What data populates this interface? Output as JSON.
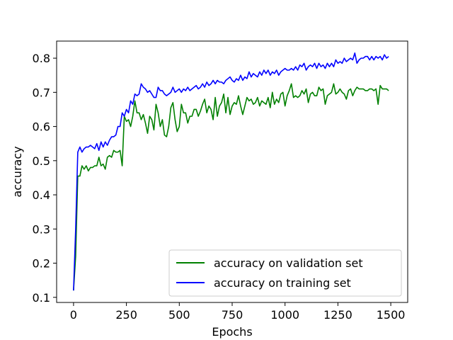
{
  "chart_data": {
    "type": "line",
    "xlabel": "Epochs",
    "ylabel": "accuracy",
    "xlim": [
      -80,
      1580
    ],
    "ylim": [
      0.085,
      0.85
    ],
    "x_ticks": [
      0,
      250,
      500,
      750,
      1000,
      1250,
      1500
    ],
    "y_ticks": [
      0.1,
      0.2,
      0.3,
      0.4,
      0.5,
      0.6,
      0.7,
      0.8
    ],
    "grid": false,
    "legend_position": "bottom-right",
    "series": [
      {
        "name": "accuracy on validation set",
        "color": "#008000",
        "points": [
          [
            0,
            0.12
          ],
          [
            10,
            0.22
          ],
          [
            20,
            0.455
          ],
          [
            30,
            0.455
          ],
          [
            40,
            0.485
          ],
          [
            50,
            0.475
          ],
          [
            60,
            0.485
          ],
          [
            70,
            0.47
          ],
          [
            80,
            0.48
          ],
          [
            90,
            0.48
          ],
          [
            100,
            0.485
          ],
          [
            110,
            0.485
          ],
          [
            120,
            0.51
          ],
          [
            130,
            0.485
          ],
          [
            140,
            0.49
          ],
          [
            150,
            0.475
          ],
          [
            160,
            0.51
          ],
          [
            170,
            0.515
          ],
          [
            180,
            0.51
          ],
          [
            190,
            0.53
          ],
          [
            200,
            0.525
          ],
          [
            210,
            0.525
          ],
          [
            220,
            0.53
          ],
          [
            230,
            0.485
          ],
          [
            240,
            0.63
          ],
          [
            250,
            0.615
          ],
          [
            260,
            0.62
          ],
          [
            270,
            0.6
          ],
          [
            280,
            0.63
          ],
          [
            290,
            0.675
          ],
          [
            300,
            0.64
          ],
          [
            310,
            0.64
          ],
          [
            320,
            0.62
          ],
          [
            330,
            0.635
          ],
          [
            340,
            0.61
          ],
          [
            350,
            0.58
          ],
          [
            360,
            0.63
          ],
          [
            370,
            0.62
          ],
          [
            380,
            0.59
          ],
          [
            390,
            0.665
          ],
          [
            400,
            0.64
          ],
          [
            410,
            0.6
          ],
          [
            420,
            0.62
          ],
          [
            430,
            0.575
          ],
          [
            440,
            0.57
          ],
          [
            450,
            0.6
          ],
          [
            460,
            0.655
          ],
          [
            470,
            0.67
          ],
          [
            480,
            0.62
          ],
          [
            490,
            0.585
          ],
          [
            500,
            0.6
          ],
          [
            510,
            0.665
          ],
          [
            520,
            0.64
          ],
          [
            530,
            0.64
          ],
          [
            540,
            0.61
          ],
          [
            550,
            0.63
          ],
          [
            560,
            0.63
          ],
          [
            570,
            0.65
          ],
          [
            580,
            0.65
          ],
          [
            590,
            0.63
          ],
          [
            600,
            0.645
          ],
          [
            610,
            0.665
          ],
          [
            620,
            0.68
          ],
          [
            630,
            0.64
          ],
          [
            640,
            0.66
          ],
          [
            650,
            0.65
          ],
          [
            660,
            0.62
          ],
          [
            670,
            0.685
          ],
          [
            680,
            0.63
          ],
          [
            690,
            0.66
          ],
          [
            700,
            0.67
          ],
          [
            710,
            0.695
          ],
          [
            720,
            0.64
          ],
          [
            730,
            0.685
          ],
          [
            740,
            0.635
          ],
          [
            750,
            0.66
          ],
          [
            760,
            0.67
          ],
          [
            770,
            0.665
          ],
          [
            780,
            0.69
          ],
          [
            790,
            0.66
          ],
          [
            800,
            0.635
          ],
          [
            810,
            0.66
          ],
          [
            820,
            0.685
          ],
          [
            830,
            0.675
          ],
          [
            840,
            0.68
          ],
          [
            850,
            0.665
          ],
          [
            860,
            0.67
          ],
          [
            870,
            0.685
          ],
          [
            880,
            0.66
          ],
          [
            890,
            0.675
          ],
          [
            900,
            0.67
          ],
          [
            910,
            0.665
          ],
          [
            920,
            0.685
          ],
          [
            930,
            0.655
          ],
          [
            940,
            0.7
          ],
          [
            950,
            0.665
          ],
          [
            960,
            0.68
          ],
          [
            970,
            0.67
          ],
          [
            980,
            0.695
          ],
          [
            990,
            0.7
          ],
          [
            1000,
            0.66
          ],
          [
            1010,
            0.69
          ],
          [
            1020,
            0.705
          ],
          [
            1030,
            0.725
          ],
          [
            1040,
            0.685
          ],
          [
            1050,
            0.69
          ],
          [
            1060,
            0.685
          ],
          [
            1070,
            0.69
          ],
          [
            1080,
            0.705
          ],
          [
            1090,
            0.695
          ],
          [
            1100,
            0.71
          ],
          [
            1110,
            0.67
          ],
          [
            1120,
            0.695
          ],
          [
            1130,
            0.7
          ],
          [
            1140,
            0.69
          ],
          [
            1150,
            0.69
          ],
          [
            1160,
            0.715
          ],
          [
            1170,
            0.705
          ],
          [
            1180,
            0.71
          ],
          [
            1190,
            0.665
          ],
          [
            1200,
            0.69
          ],
          [
            1210,
            0.695
          ],
          [
            1220,
            0.7
          ],
          [
            1230,
            0.725
          ],
          [
            1240,
            0.695
          ],
          [
            1250,
            0.7
          ],
          [
            1260,
            0.71
          ],
          [
            1270,
            0.7
          ],
          [
            1280,
            0.695
          ],
          [
            1290,
            0.68
          ],
          [
            1300,
            0.705
          ],
          [
            1310,
            0.71
          ],
          [
            1320,
            0.69
          ],
          [
            1330,
            0.705
          ],
          [
            1340,
            0.715
          ],
          [
            1350,
            0.71
          ],
          [
            1360,
            0.71
          ],
          [
            1370,
            0.71
          ],
          [
            1380,
            0.705
          ],
          [
            1390,
            0.705
          ],
          [
            1400,
            0.71
          ],
          [
            1410,
            0.71
          ],
          [
            1420,
            0.705
          ],
          [
            1430,
            0.71
          ],
          [
            1440,
            0.665
          ],
          [
            1450,
            0.72
          ],
          [
            1460,
            0.71
          ],
          [
            1470,
            0.71
          ],
          [
            1480,
            0.71
          ],
          [
            1490,
            0.705
          ]
        ]
      },
      {
        "name": "accuracy on training set",
        "color": "#0000ff",
        "points": [
          [
            0,
            0.12
          ],
          [
            10,
            0.3
          ],
          [
            20,
            0.525
          ],
          [
            30,
            0.54
          ],
          [
            40,
            0.525
          ],
          [
            50,
            0.535
          ],
          [
            60,
            0.54
          ],
          [
            70,
            0.54
          ],
          [
            80,
            0.545
          ],
          [
            90,
            0.54
          ],
          [
            100,
            0.535
          ],
          [
            110,
            0.55
          ],
          [
            120,
            0.53
          ],
          [
            130,
            0.555
          ],
          [
            140,
            0.54
          ],
          [
            150,
            0.555
          ],
          [
            160,
            0.545
          ],
          [
            170,
            0.56
          ],
          [
            180,
            0.57
          ],
          [
            190,
            0.57
          ],
          [
            200,
            0.575
          ],
          [
            210,
            0.6
          ],
          [
            220,
            0.6
          ],
          [
            230,
            0.64
          ],
          [
            240,
            0.63
          ],
          [
            250,
            0.65
          ],
          [
            260,
            0.64
          ],
          [
            270,
            0.675
          ],
          [
            280,
            0.665
          ],
          [
            290,
            0.695
          ],
          [
            300,
            0.69
          ],
          [
            310,
            0.695
          ],
          [
            320,
            0.725
          ],
          [
            330,
            0.715
          ],
          [
            340,
            0.71
          ],
          [
            350,
            0.7
          ],
          [
            360,
            0.705
          ],
          [
            370,
            0.695
          ],
          [
            380,
            0.685
          ],
          [
            390,
            0.685
          ],
          [
            400,
            0.715
          ],
          [
            410,
            0.705
          ],
          [
            420,
            0.705
          ],
          [
            430,
            0.695
          ],
          [
            440,
            0.69
          ],
          [
            450,
            0.695
          ],
          [
            460,
            0.7
          ],
          [
            470,
            0.715
          ],
          [
            480,
            0.7
          ],
          [
            490,
            0.705
          ],
          [
            500,
            0.71
          ],
          [
            510,
            0.7
          ],
          [
            520,
            0.71
          ],
          [
            530,
            0.705
          ],
          [
            540,
            0.715
          ],
          [
            550,
            0.705
          ],
          [
            560,
            0.71
          ],
          [
            570,
            0.715
          ],
          [
            580,
            0.72
          ],
          [
            590,
            0.71
          ],
          [
            600,
            0.715
          ],
          [
            610,
            0.725
          ],
          [
            620,
            0.715
          ],
          [
            630,
            0.73
          ],
          [
            640,
            0.72
          ],
          [
            650,
            0.725
          ],
          [
            660,
            0.735
          ],
          [
            670,
            0.725
          ],
          [
            680,
            0.735
          ],
          [
            690,
            0.73
          ],
          [
            700,
            0.73
          ],
          [
            710,
            0.725
          ],
          [
            720,
            0.735
          ],
          [
            730,
            0.74
          ],
          [
            740,
            0.745
          ],
          [
            750,
            0.735
          ],
          [
            760,
            0.73
          ],
          [
            770,
            0.74
          ],
          [
            780,
            0.735
          ],
          [
            790,
            0.75
          ],
          [
            800,
            0.735
          ],
          [
            810,
            0.745
          ],
          [
            820,
            0.74
          ],
          [
            830,
            0.76
          ],
          [
            840,
            0.745
          ],
          [
            850,
            0.755
          ],
          [
            860,
            0.75
          ],
          [
            870,
            0.745
          ],
          [
            880,
            0.76
          ],
          [
            890,
            0.75
          ],
          [
            900,
            0.765
          ],
          [
            910,
            0.755
          ],
          [
            920,
            0.765
          ],
          [
            930,
            0.75
          ],
          [
            940,
            0.76
          ],
          [
            950,
            0.755
          ],
          [
            960,
            0.765
          ],
          [
            970,
            0.75
          ],
          [
            980,
            0.76
          ],
          [
            990,
            0.765
          ],
          [
            1000,
            0.77
          ],
          [
            1010,
            0.765
          ],
          [
            1020,
            0.765
          ],
          [
            1030,
            0.77
          ],
          [
            1040,
            0.765
          ],
          [
            1050,
            0.775
          ],
          [
            1060,
            0.765
          ],
          [
            1070,
            0.78
          ],
          [
            1080,
            0.775
          ],
          [
            1090,
            0.785
          ],
          [
            1100,
            0.765
          ],
          [
            1110,
            0.775
          ],
          [
            1120,
            0.78
          ],
          [
            1130,
            0.775
          ],
          [
            1140,
            0.785
          ],
          [
            1150,
            0.77
          ],
          [
            1160,
            0.785
          ],
          [
            1170,
            0.775
          ],
          [
            1180,
            0.78
          ],
          [
            1190,
            0.77
          ],
          [
            1200,
            0.785
          ],
          [
            1210,
            0.775
          ],
          [
            1220,
            0.785
          ],
          [
            1230,
            0.775
          ],
          [
            1240,
            0.795
          ],
          [
            1250,
            0.785
          ],
          [
            1260,
            0.79
          ],
          [
            1270,
            0.785
          ],
          [
            1280,
            0.8
          ],
          [
            1290,
            0.79
          ],
          [
            1300,
            0.795
          ],
          [
            1310,
            0.8
          ],
          [
            1320,
            0.795
          ],
          [
            1330,
            0.815
          ],
          [
            1340,
            0.785
          ],
          [
            1350,
            0.795
          ],
          [
            1360,
            0.8
          ],
          [
            1370,
            0.8
          ],
          [
            1380,
            0.805
          ],
          [
            1390,
            0.805
          ],
          [
            1400,
            0.795
          ],
          [
            1410,
            0.805
          ],
          [
            1420,
            0.795
          ],
          [
            1430,
            0.805
          ],
          [
            1440,
            0.8
          ],
          [
            1450,
            0.805
          ],
          [
            1460,
            0.795
          ],
          [
            1470,
            0.81
          ],
          [
            1480,
            0.8
          ],
          [
            1490,
            0.805
          ]
        ]
      }
    ]
  }
}
